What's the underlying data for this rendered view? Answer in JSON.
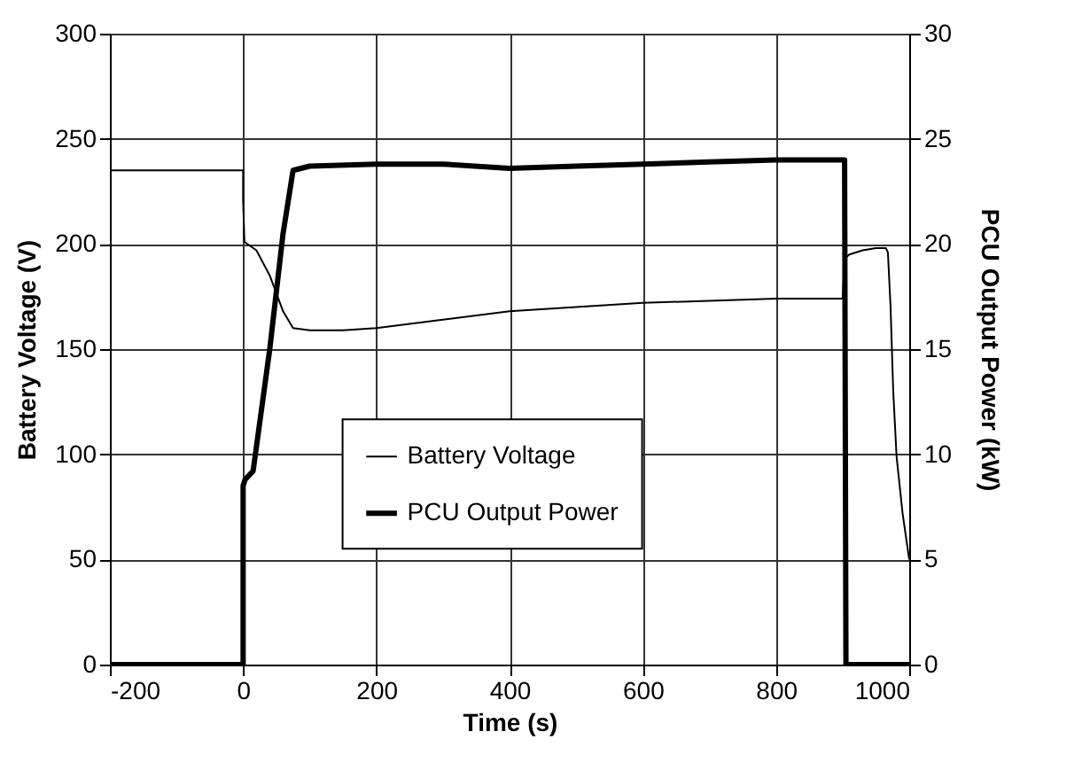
{
  "chart_data": {
    "type": "line",
    "xlabel": "Time (s)",
    "ylabel": "Battery Voltage (V)",
    "y2label": "PCU Output Power (kW)",
    "xlim": [
      -200,
      1000
    ],
    "xticks": [
      -200,
      0,
      200,
      400,
      600,
      800,
      1000
    ],
    "ylim": [
      0,
      300
    ],
    "yticks": [
      0,
      50,
      100,
      150,
      200,
      250,
      300
    ],
    "y2lim": [
      0,
      30
    ],
    "y2ticks": [
      0,
      5,
      10,
      15,
      20,
      25,
      30
    ],
    "grid": true,
    "legend": "center",
    "marker": "none",
    "series": [
      {
        "name": "Battery Voltage",
        "color": "#000000",
        "x": [
          -200,
          0,
          0,
          2,
          20,
          40,
          60,
          75,
          100,
          150,
          200,
          250,
          300,
          400,
          500,
          600,
          700,
          800,
          850,
          900,
          903,
          910,
          930,
          950,
          965,
          968,
          972,
          976,
          981,
          990,
          1000
        ],
        "values": [
          235,
          235,
          221,
          201,
          197,
          185,
          168,
          160,
          159,
          159,
          160,
          162,
          164,
          168,
          170,
          172,
          173,
          174,
          174,
          174,
          193,
          195,
          197,
          198,
          198,
          196,
          170,
          130,
          99,
          72,
          50
        ]
      },
      {
        "name": "PCU Output Power",
        "color": "#000000",
        "axis": "y2",
        "x": [
          -200,
          0,
          0,
          3,
          15,
          40,
          60,
          75,
          100,
          200,
          300,
          400,
          500,
          600,
          700,
          800,
          900,
          903,
          905,
          1000
        ],
        "values": [
          0,
          0,
          8.5,
          8.8,
          9.2,
          15,
          20.5,
          23.5,
          23.7,
          23.8,
          23.8,
          23.6,
          23.7,
          23.8,
          23.9,
          24,
          24,
          24,
          0,
          0
        ]
      }
    ]
  }
}
